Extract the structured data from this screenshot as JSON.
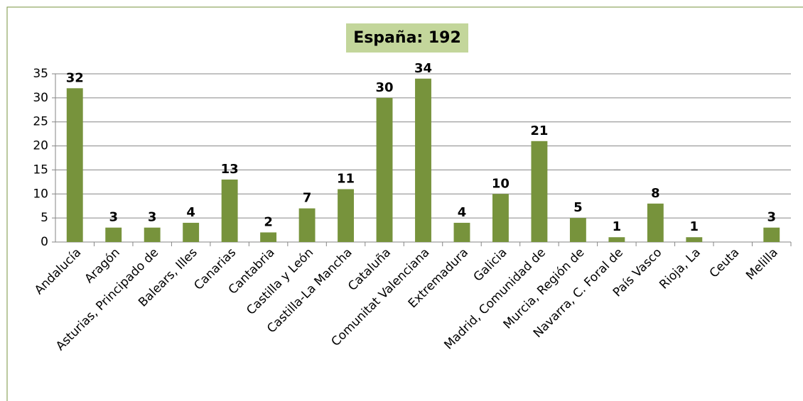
{
  "chart_data": {
    "type": "bar",
    "title": "España:  192",
    "categories": [
      "Andalucía",
      "Aragón",
      "Asturias, Principado de",
      "Balears, Illes",
      "Canarias",
      "Cantabria",
      "Castilla y León",
      "Castilla-La Mancha",
      "Cataluña",
      "Comunitat Valenciana",
      "Extremadura",
      "Galicia",
      "Madrid, Comunidad de",
      "Murcia, Región de",
      "Navarra, C. Foral de",
      "País Vasco",
      "Rioja, La",
      "Ceuta",
      "Melilla"
    ],
    "values": [
      32,
      3,
      3,
      4,
      13,
      2,
      7,
      11,
      30,
      34,
      4,
      10,
      21,
      5,
      1,
      8,
      1,
      null,
      3
    ],
    "color": "#77933c",
    "ylim": [
      0,
      35
    ],
    "yticks": [
      0,
      5,
      10,
      15,
      20,
      25,
      30,
      35
    ],
    "grid": true
  }
}
